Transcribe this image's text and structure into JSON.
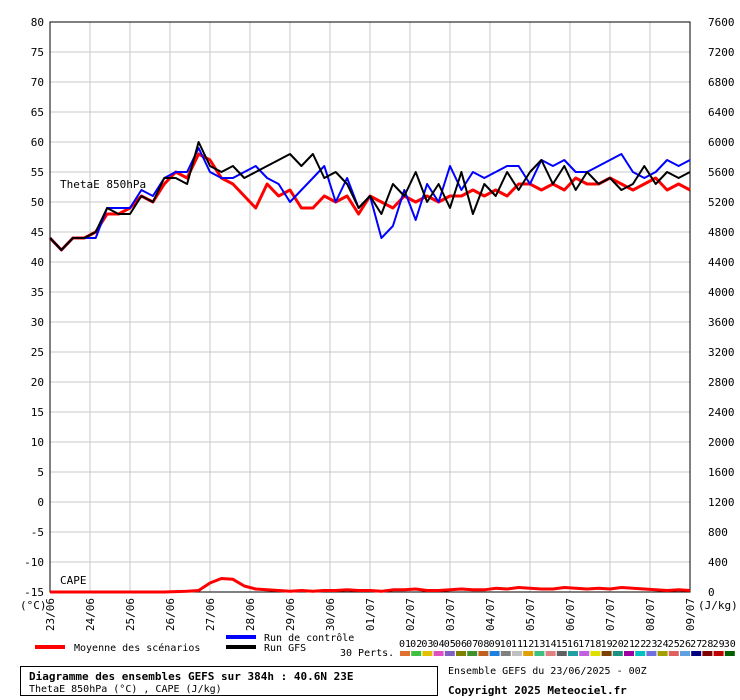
{
  "chart_data": {
    "type": "line",
    "title": "Diagramme des ensembles GEFS sur 384h : 40.6N 23E",
    "subtitle": "ThetaE 850hPa (°C) , CAPE (J/kg)",
    "annotation_thetae": "ThetaE 850hPa",
    "annotation_cape": "CAPE",
    "left_axis": {
      "unit_label": "(°C)",
      "ticks": [
        "80",
        "75",
        "70",
        "65",
        "60",
        "55",
        "50",
        "45",
        "40",
        "35",
        "30",
        "25",
        "20",
        "15",
        "10",
        "5",
        "0",
        "-5",
        "-10",
        "-15"
      ],
      "range": [
        -15,
        80
      ]
    },
    "right_axis": {
      "unit_label": "(J/kg)",
      "ticks": [
        "7600",
        "7200",
        "6800",
        "6400",
        "6000",
        "5600",
        "5200",
        "4800",
        "4400",
        "4000",
        "3600",
        "3200",
        "2800",
        "2400",
        "2000",
        "1600",
        "1200",
        "800",
        "400",
        "0"
      ],
      "range": [
        0,
        7600
      ]
    },
    "x_ticks": [
      "23/06",
      "24/06",
      "25/06",
      "26/06",
      "27/06",
      "28/06",
      "29/06",
      "30/06",
      "01/07",
      "02/07",
      "03/07",
      "04/07",
      "05/07",
      "06/07",
      "07/07",
      "08/07",
      "09/07"
    ],
    "series": [
      {
        "name": "Moyenne des scénarios",
        "color": "#ff0000",
        "metric": "ThetaE 850hPa",
        "values": [
          44,
          42,
          44,
          44,
          45,
          48,
          48,
          49,
          51,
          50,
          53,
          55,
          54,
          58,
          57,
          54,
          53,
          51,
          49,
          53,
          51,
          52,
          49,
          49,
          51,
          50,
          51,
          48,
          51,
          50,
          49,
          51,
          50,
          51,
          50,
          51,
          51,
          52,
          51,
          52,
          51,
          53,
          53,
          52,
          53,
          52,
          54,
          53,
          53,
          54,
          53,
          52,
          53,
          54,
          52,
          53,
          52
        ]
      },
      {
        "name": "Run de contrôle",
        "color": "#0000ff",
        "metric": "ThetaE 850hPa",
        "values": [
          44,
          42,
          44,
          44,
          44,
          49,
          49,
          49,
          52,
          51,
          54,
          55,
          55,
          59,
          55,
          54,
          54,
          55,
          56,
          54,
          53,
          50,
          52,
          54,
          56,
          50,
          54,
          49,
          51,
          44,
          46,
          52,
          47,
          53,
          50,
          56,
          52,
          55,
          54,
          55,
          56,
          56,
          53,
          57,
          56,
          57,
          55,
          55,
          56,
          57,
          58,
          55,
          54,
          55,
          57,
          56,
          57
        ]
      },
      {
        "name": "Run GFS",
        "color": "#000000",
        "metric": "ThetaE 850hPa",
        "values": [
          44,
          42,
          44,
          44,
          45,
          49,
          48,
          48,
          51,
          50,
          54,
          54,
          53,
          60,
          56,
          55,
          56,
          54,
          55,
          56,
          57,
          58,
          56,
          58,
          54,
          55,
          53,
          49,
          51,
          48,
          53,
          51,
          55,
          50,
          53,
          49,
          55,
          48,
          53,
          51,
          55,
          52,
          55,
          57,
          53,
          56,
          52,
          55,
          53,
          54,
          52,
          53,
          56,
          53,
          55,
          54,
          55
        ]
      },
      {
        "name": "Moyenne des scénarios (CAPE)",
        "color": "#ff0000",
        "metric": "CAPE",
        "values": [
          0,
          0,
          0,
          0,
          0,
          0,
          0,
          0,
          0,
          0,
          0,
          5,
          10,
          20,
          120,
          180,
          170,
          80,
          40,
          30,
          20,
          10,
          20,
          10,
          20,
          20,
          30,
          20,
          20,
          10,
          30,
          30,
          40,
          20,
          20,
          30,
          40,
          30,
          30,
          50,
          40,
          60,
          50,
          40,
          40,
          60,
          50,
          40,
          50,
          40,
          60,
          50,
          40,
          30,
          20,
          30,
          20
        ]
      }
    ],
    "ensemble_label": "30 Perts.",
    "ensemble_numbers": [
      "01",
      "02",
      "03",
      "04",
      "05",
      "06",
      "07",
      "08",
      "09",
      "10",
      "11",
      "12",
      "13",
      "14",
      "15",
      "16",
      "17",
      "18",
      "19",
      "20",
      "21",
      "22",
      "23",
      "24",
      "25",
      "26",
      "27",
      "28",
      "29",
      "30"
    ],
    "ensemble_colors": [
      "#e07030",
      "#40c040",
      "#e0c000",
      "#e050c0",
      "#8060c0",
      "#808000",
      "#409030",
      "#c06020",
      "#2080e0",
      "#808080",
      "#c0c0c0",
      "#e0a000",
      "#40c080",
      "#e08080",
      "#606060",
      "#20a0a0",
      "#c060e0",
      "#e0e000",
      "#804000",
      "#209080",
      "#a000a0",
      "#00c0c0",
      "#7070e0",
      "#a0a000",
      "#e06060",
      "#60a0e0",
      "#000080",
      "#800000",
      "#c00000",
      "#006000"
    ],
    "grid": true
  },
  "legend": {
    "moyenne": "Moyenne des scénarios",
    "controle": "Run de contrôle",
    "gfs": "Run GFS"
  },
  "footer": {
    "title": "Diagramme des ensembles GEFS sur 384h : 40.6N 23E",
    "subtitle": "ThetaE 850hPa (°C) , CAPE (J/kg)",
    "ensemble": "Ensemble GEFS du 23/06/2025 - 00Z",
    "copyright": "Copyright 2025 Meteociel.fr"
  }
}
